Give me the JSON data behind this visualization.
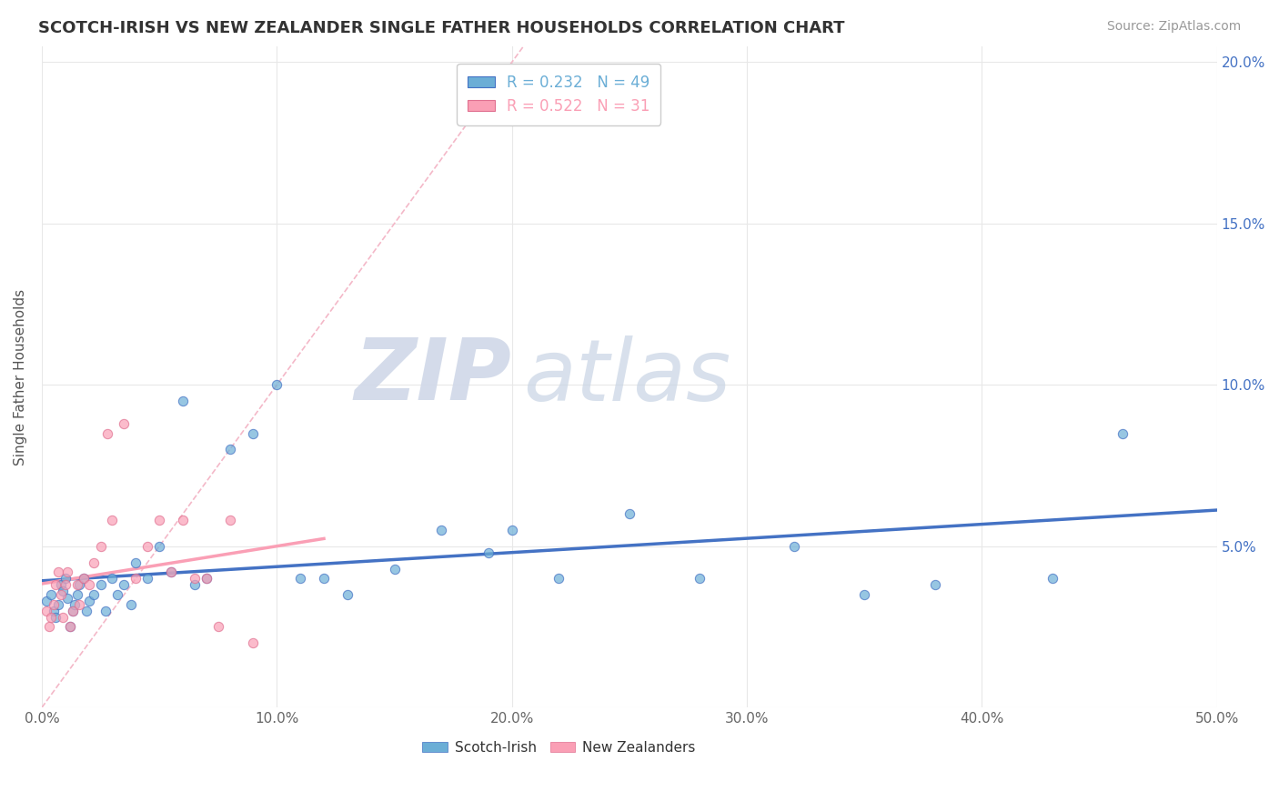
{
  "title": "SCOTCH-IRISH VS NEW ZEALANDER SINGLE FATHER HOUSEHOLDS CORRELATION CHART",
  "source": "Source: ZipAtlas.com",
  "ylabel": "Single Father Households",
  "xlim": [
    0.0,
    0.5
  ],
  "ylim": [
    0.0,
    0.205
  ],
  "xticks": [
    0.0,
    0.1,
    0.2,
    0.3,
    0.4,
    0.5
  ],
  "xticklabels": [
    "0.0%",
    "10.0%",
    "20.0%",
    "30.0%",
    "40.0%",
    "50.0%"
  ],
  "yticks": [
    0.0,
    0.05,
    0.1,
    0.15,
    0.2
  ],
  "yticklabels_right": [
    "",
    "5.0%",
    "10.0%",
    "15.0%",
    "20.0%"
  ],
  "scotch_irish_color": "#6baed6",
  "new_zealander_color": "#fa9fb5",
  "scotch_irish_R": 0.232,
  "scotch_irish_N": 49,
  "new_zealander_R": 0.522,
  "new_zealander_N": 31,
  "watermark_zip": "ZIP",
  "watermark_atlas": "atlas",
  "diag_line_color": "#f4b8c8",
  "diag_line_style": "--",
  "si_line_color": "#4472c4",
  "nz_line_color": "#fa9fb5",
  "scotch_irish_x": [
    0.002,
    0.004,
    0.005,
    0.006,
    0.007,
    0.008,
    0.009,
    0.01,
    0.011,
    0.012,
    0.013,
    0.014,
    0.015,
    0.016,
    0.018,
    0.019,
    0.02,
    0.022,
    0.025,
    0.027,
    0.03,
    0.032,
    0.035,
    0.038,
    0.04,
    0.045,
    0.05,
    0.055,
    0.06,
    0.065,
    0.07,
    0.08,
    0.09,
    0.1,
    0.11,
    0.12,
    0.13,
    0.15,
    0.17,
    0.19,
    0.22,
    0.25,
    0.28,
    0.32,
    0.35,
    0.38,
    0.43,
    0.46,
    0.2
  ],
  "scotch_irish_y": [
    0.033,
    0.035,
    0.03,
    0.028,
    0.032,
    0.038,
    0.036,
    0.04,
    0.034,
    0.025,
    0.03,
    0.032,
    0.035,
    0.038,
    0.04,
    0.03,
    0.033,
    0.035,
    0.038,
    0.03,
    0.04,
    0.035,
    0.038,
    0.032,
    0.045,
    0.04,
    0.05,
    0.042,
    0.095,
    0.038,
    0.04,
    0.08,
    0.085,
    0.1,
    0.04,
    0.04,
    0.035,
    0.043,
    0.055,
    0.048,
    0.04,
    0.06,
    0.04,
    0.05,
    0.035,
    0.038,
    0.04,
    0.085,
    0.055
  ],
  "new_zealander_x": [
    0.002,
    0.003,
    0.004,
    0.005,
    0.006,
    0.007,
    0.008,
    0.009,
    0.01,
    0.011,
    0.012,
    0.013,
    0.015,
    0.016,
    0.018,
    0.02,
    0.022,
    0.025,
    0.028,
    0.03,
    0.035,
    0.04,
    0.045,
    0.05,
    0.055,
    0.06,
    0.065,
    0.07,
    0.075,
    0.08,
    0.09
  ],
  "new_zealander_y": [
    0.03,
    0.025,
    0.028,
    0.032,
    0.038,
    0.042,
    0.035,
    0.028,
    0.038,
    0.042,
    0.025,
    0.03,
    0.038,
    0.032,
    0.04,
    0.038,
    0.045,
    0.05,
    0.085,
    0.058,
    0.088,
    0.04,
    0.05,
    0.058,
    0.042,
    0.058,
    0.04,
    0.04,
    0.025,
    0.058,
    0.02
  ]
}
